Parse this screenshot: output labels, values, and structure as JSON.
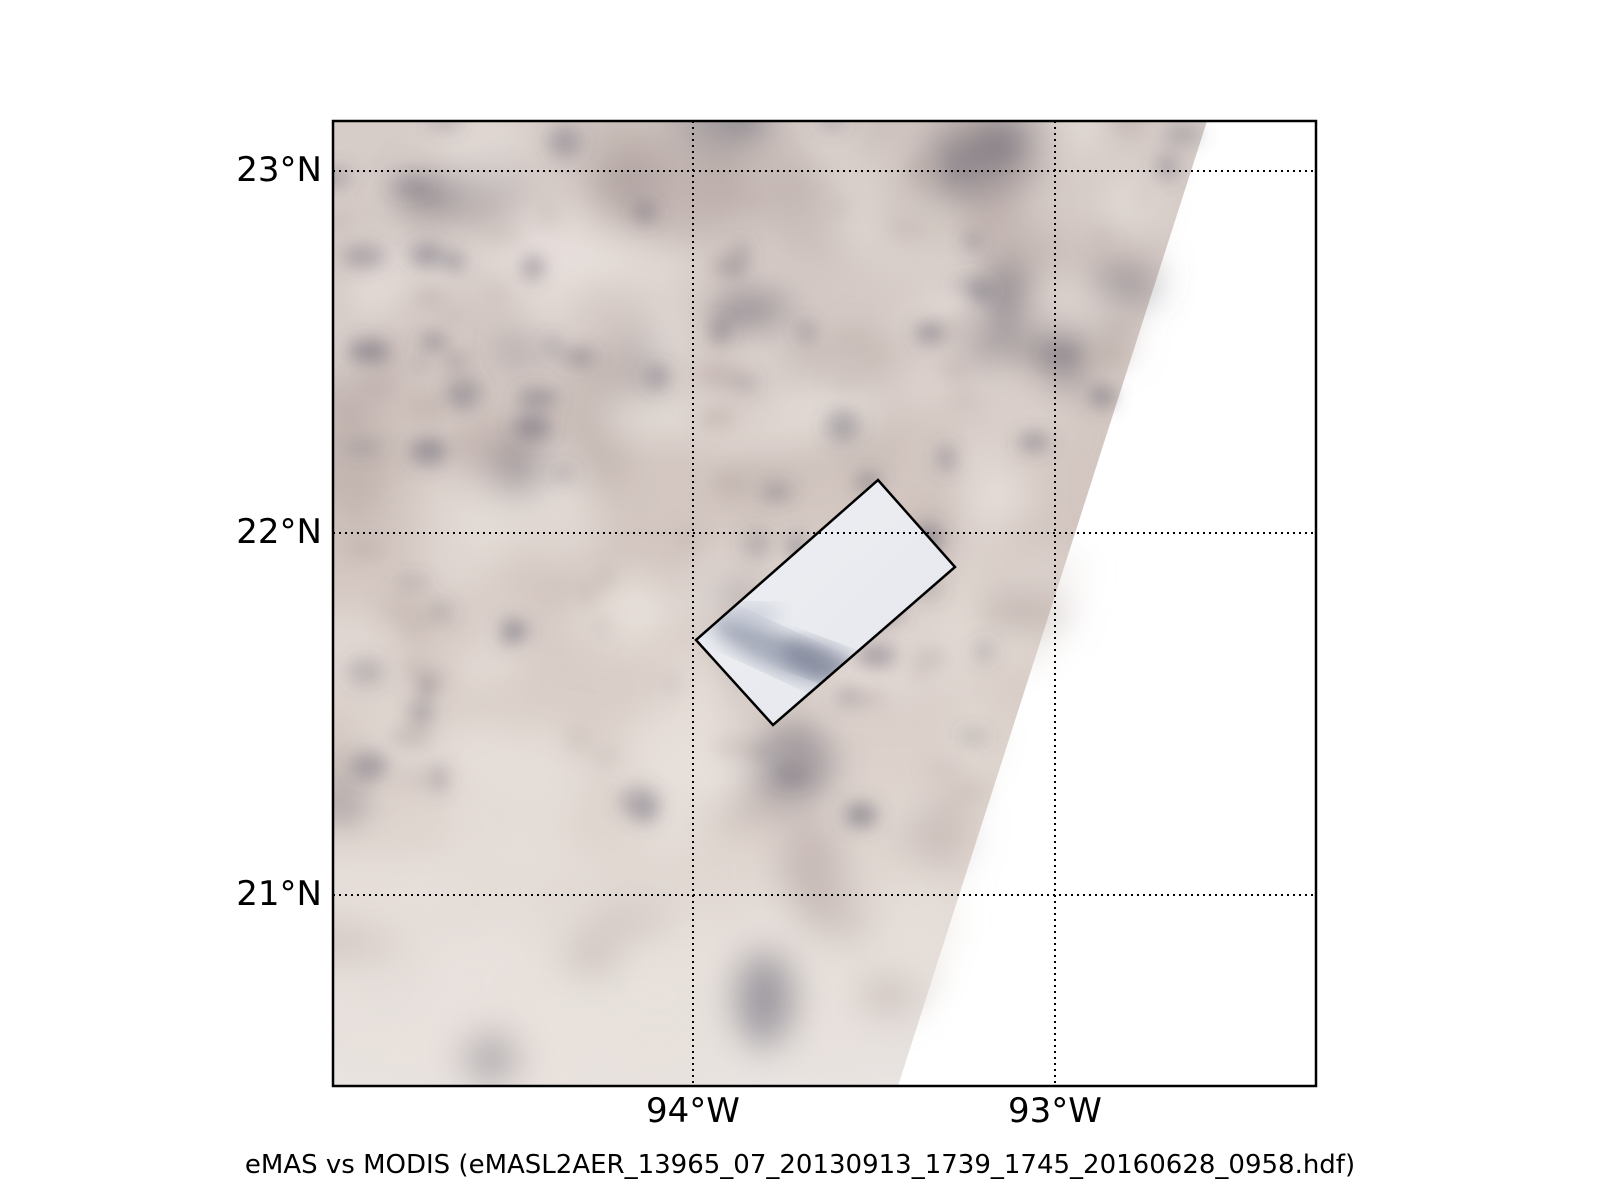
{
  "figure": {
    "caption": "eMAS vs MODIS (eMASL2AER_13965_07_20130913_1739_1745_20160628_0958.hdf)"
  },
  "map": {
    "lat_labels": [
      "23°N",
      "22°N",
      "21°N"
    ],
    "lon_labels": [
      "94°W",
      "93°W"
    ],
    "gridline_style": "dotted",
    "colors": {
      "modis_light": "#e8e1dc",
      "modis_mid": "#b8aaa6",
      "modis_dark": "#5a5869",
      "emas_light": "#eef0f4",
      "emas_dark": "#7c8298",
      "frame": "#000000",
      "background": "#ffffff"
    }
  }
}
